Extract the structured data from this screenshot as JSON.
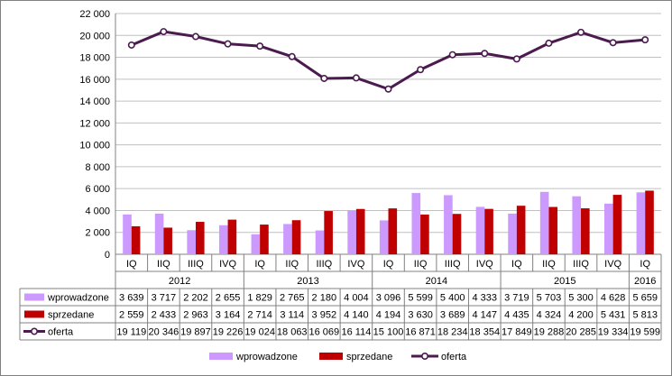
{
  "chart_data": {
    "type": "bar+line",
    "ylim": [
      0,
      22000
    ],
    "yticks": [
      "0",
      "2 000",
      "4 000",
      "6 000",
      "8 000",
      "10 000",
      "12 000",
      "14 000",
      "16 000",
      "18 000",
      "20 000",
      "22 000"
    ],
    "categories": [
      "IQ",
      "IIQ",
      "IIIQ",
      "IVQ",
      "IQ",
      "IIQ",
      "IIIQ",
      "IVQ",
      "IQ",
      "IIQ",
      "IIIQ",
      "IVQ",
      "IQ",
      "IIQ",
      "IIIQ",
      "IVQ",
      "IQ"
    ],
    "years": [
      {
        "label": "2012",
        "span": 4
      },
      {
        "label": "2013",
        "span": 4
      },
      {
        "label": "2014",
        "span": 4
      },
      {
        "label": "2015",
        "span": 4
      },
      {
        "label": "2016",
        "span": 1
      }
    ],
    "grid": true,
    "legend_position": "bottom",
    "series": [
      {
        "name": "wprowadzone",
        "kind": "bar",
        "color": "#cc99ff",
        "values": [
          3639,
          3717,
          2202,
          2655,
          1829,
          2765,
          2180,
          4004,
          3096,
          5599,
          5400,
          4333,
          3719,
          5703,
          5300,
          4628,
          5659
        ],
        "labels": [
          "3 639",
          "3 717",
          "2 202",
          "2 655",
          "1 829",
          "2 765",
          "2 180",
          "4 004",
          "3 096",
          "5 599",
          "5 400",
          "4 333",
          "3 719",
          "5 703",
          "5 300",
          "4 628",
          "5 659"
        ]
      },
      {
        "name": "sprzedane",
        "kind": "bar",
        "color": "#c00000",
        "values": [
          2559,
          2433,
          2963,
          3164,
          2714,
          3114,
          3952,
          4140,
          4194,
          3630,
          3689,
          4147,
          4435,
          4324,
          4200,
          5431,
          5813
        ],
        "labels": [
          "2 559",
          "2 433",
          "2 963",
          "3 164",
          "2 714",
          "3 114",
          "3 952",
          "4 140",
          "4 194",
          "3 630",
          "3 689",
          "4 147",
          "4 435",
          "4 324",
          "4 200",
          "5 431",
          "5 813"
        ]
      },
      {
        "name": "oferta",
        "kind": "line",
        "color": "#4b1a4f",
        "values": [
          19119,
          20346,
          19897,
          19226,
          19024,
          18063,
          16069,
          16114,
          15100,
          16871,
          18234,
          18354,
          17849,
          19288,
          20285,
          19334,
          19599
        ],
        "labels": [
          "19 119",
          "20 346",
          "19 897",
          "19 226",
          "19 024",
          "18 063",
          "16 069",
          "16 114",
          "15 100",
          "16 871",
          "18 234",
          "18 354",
          "17 849",
          "19 288",
          "20 285",
          "19 334",
          "19 599"
        ]
      }
    ]
  }
}
